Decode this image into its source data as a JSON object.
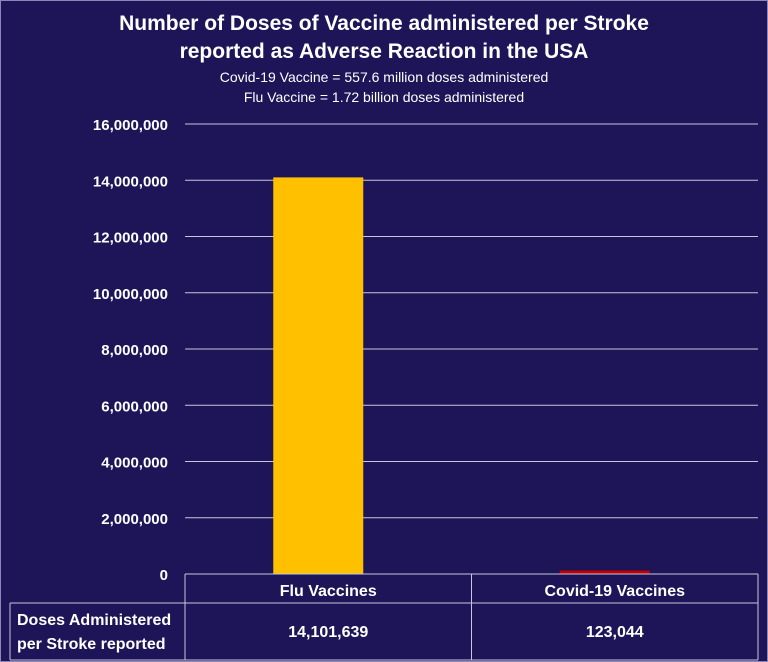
{
  "chart_data": {
    "type": "bar",
    "title_line1": "Number of Doses of Vaccine administered per Stroke",
    "title_line2": "reported as Adverse Reaction in the USA",
    "subtitle_line1": "Covid-19 Vaccine = 557.6 million doses administered",
    "subtitle_line2": "Flu Vaccine = 1.72 billion doses administered",
    "categories": [
      "Flu Vaccines",
      "Covid-19 Vaccines"
    ],
    "values": [
      14101639,
      123044
    ],
    "value_labels": [
      "14,101,639",
      "123,044"
    ],
    "bar_colors": [
      "#ffc000",
      "#c00000"
    ],
    "ylim": [
      0,
      16000000
    ],
    "yticks": [
      0,
      2000000,
      4000000,
      6000000,
      8000000,
      10000000,
      12000000,
      14000000,
      16000000
    ],
    "ytick_labels": [
      "0",
      "2,000,000",
      "4,000,000",
      "6,000,000",
      "8,000,000",
      "10,000,000",
      "12,000,000",
      "14,000,000",
      "16,000,000"
    ],
    "grid": true,
    "table_row_header": [
      "Doses Administered",
      "per Stroke reported"
    ]
  },
  "colors": {
    "background": "#1d1557",
    "grid": "#c8c6dc",
    "text": "#ffffff"
  }
}
